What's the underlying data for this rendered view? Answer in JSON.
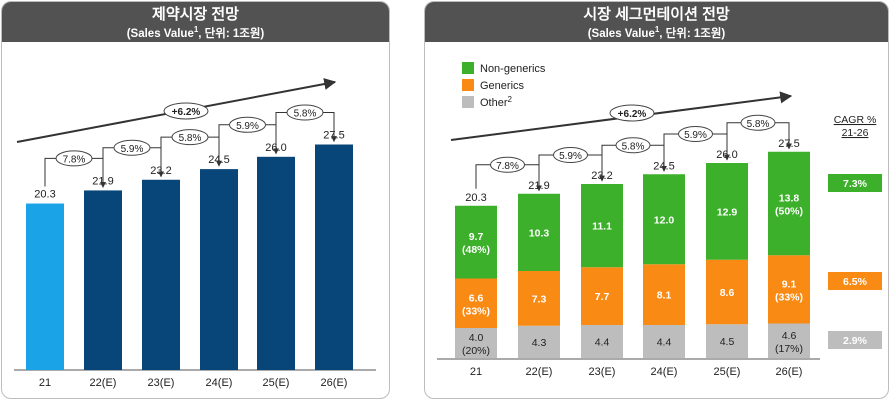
{
  "chart_data": [
    {
      "type": "bar",
      "title": "제약시장 전망",
      "subtitle": "(Sales Value",
      "subtitle_sup": "1",
      "subtitle_tail": ", 단위: 1조원)",
      "categories": [
        "21",
        "22(E)",
        "23(E)",
        "24(E)",
        "25(E)",
        "26(E)"
      ],
      "values": [
        20.3,
        21.9,
        23.2,
        24.5,
        26.0,
        27.5
      ],
      "value_labels": [
        "20.3",
        "21.9",
        "23.2",
        "24.5",
        "26.0",
        "27.5"
      ],
      "growth_labels": [
        "7.8%",
        "5.9%",
        "5.8%",
        "5.9%",
        "5.8%"
      ],
      "overall_growth_label": "+6.2%",
      "ylim": [
        0,
        30
      ],
      "colors": {
        "first_bar": "#1ba3e8",
        "bars": "#08467a"
      }
    },
    {
      "type": "bar",
      "stacked": true,
      "title": "시장 세그먼테이션 전망",
      "subtitle": "(Sales Value",
      "subtitle_sup": "1",
      "subtitle_tail": ", 단위: 1조원)",
      "categories": [
        "21",
        "22(E)",
        "23(E)",
        "24(E)",
        "25(E)",
        "26(E)"
      ],
      "series": [
        {
          "name": "Other",
          "name_sup": "2",
          "color": "#bdbdbd",
          "values": [
            4.0,
            4.3,
            4.4,
            4.4,
            4.5,
            4.6
          ],
          "labels": [
            "4.0",
            "4.3",
            "4.4",
            "4.4",
            "4.5",
            "4.6"
          ],
          "shares": [
            "(20%)",
            "",
            "",
            "",
            "",
            "(17%)"
          ],
          "cagr": "2.9%"
        },
        {
          "name": "Generics",
          "color": "#f98a14",
          "values": [
            6.6,
            7.3,
            7.7,
            8.1,
            8.6,
            9.1
          ],
          "labels": [
            "6.6",
            "7.3",
            "7.7",
            "8.1",
            "8.6",
            "9.1"
          ],
          "shares": [
            "(33%)",
            "",
            "",
            "",
            "",
            "(33%)"
          ],
          "cagr": "6.5%"
        },
        {
          "name": "Non-generics",
          "color": "#3cb02a",
          "values": [
            9.7,
            10.3,
            11.1,
            12.0,
            12.9,
            13.8
          ],
          "labels": [
            "9.7",
            "10.3",
            "11.1",
            "12.0",
            "12.9",
            "13.8"
          ],
          "shares": [
            "(48%)",
            "",
            "",
            "",
            "",
            "(50%)"
          ],
          "cagr": "7.3%"
        }
      ],
      "totals": [
        20.3,
        21.9,
        23.2,
        24.5,
        26.0,
        27.5
      ],
      "total_labels": [
        "20.3",
        "21.9",
        "23.2",
        "24.5",
        "26.0",
        "27.5"
      ],
      "growth_labels": [
        "7.8%",
        "5.9%",
        "5.8%",
        "5.9%",
        "5.8%"
      ],
      "overall_growth_label": "+6.2%",
      "cagr_header": [
        "CAGR %",
        "21-26"
      ],
      "legend_order": [
        "Non-generics",
        "Generics",
        "Other"
      ],
      "legend_position": "top-left",
      "ylim": [
        0,
        30
      ]
    }
  ]
}
